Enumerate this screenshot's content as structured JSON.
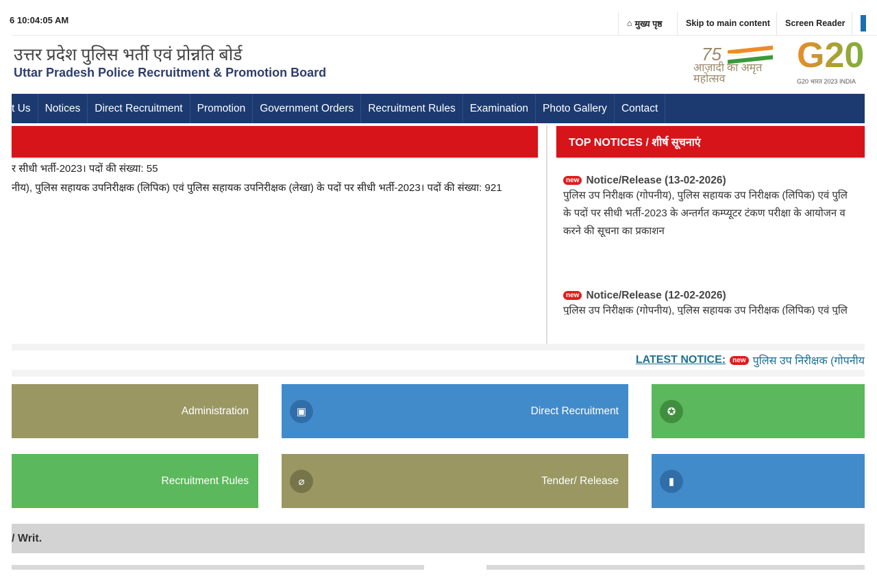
{
  "topbar": {
    "time": "6 10:04:05 AM",
    "home": "मुख्य पृष्ठ",
    "skip": "Skip to main content",
    "reader": "Screen Reader"
  },
  "header": {
    "title_hi": "उत्तर प्रदेश पुलिस भर्ती एवं प्रोन्नति बोर्ड",
    "title_en": "Uttar Pradesh Police Recruitment & Promotion Board",
    "logo1_text": "आज़ादी का अमृत महोत्सव",
    "logo2_text": "G20 भारत 2023 INDIA"
  },
  "nav": [
    "t Us",
    "Notices",
    "Direct Recruitment",
    "Promotion",
    "Government Orders",
    "Recruitment Rules",
    "Examination",
    "Photo Gallery",
    "Contact"
  ],
  "left": {
    "lines": [
      "र सीधी भर्ती-2023। पदों की संख्या: 55",
      "नीय), पुलिस सहायक उपनिरीक्षक (लिपिक) एवं पुलिस सहायक उपनिरीक्षक (लेखा) के पदों पर सीधी भर्ती-2023। पदों की संख्या: 921"
    ]
  },
  "top_notices": {
    "heading": "TOP NOTICES / शीर्ष सूचनाएं",
    "badge": "new",
    "items": [
      {
        "title": "Notice/Release (13-02-2026)",
        "body": [
          "पुलिस उप निरीक्षक (गोपनीय), पुलिस सहायक उप निरीक्षक (लिपिक) एवं पुलि",
          "के पदों पर सीधी भर्ती-2023 के अन्तर्गत कम्प्यूटर टंकण परीक्षा के आयोजन व",
          "करने की सूचना का प्रकाशन"
        ]
      },
      {
        "title": "Notice/Release (12-02-2026)",
        "body": [
          "पुलिस उप निरीक्षक (गोपनीय), पुलिस सहायक उप निरीक्षक (लिपिक) एवं पुलि"
        ]
      }
    ]
  },
  "latest": {
    "label": "LATEST NOTICE:",
    "badge": "new",
    "text": "पुलिस उप निरीक्षक (गोपनीय"
  },
  "tiles": [
    {
      "label": "Administration",
      "icon": ""
    },
    {
      "label": "Direct Recruitment",
      "icon": "address-book-icon"
    },
    {
      "label": "",
      "icon": "medal-icon"
    },
    {
      "label": "Recruitment Rules",
      "icon": ""
    },
    {
      "label": "Tender/ Release",
      "icon": "paperclip-icon"
    },
    {
      "label": "",
      "icon": "bookmark-icon"
    }
  ],
  "section": {
    "label": "/ Writ."
  },
  "colors": {
    "nav": "#1c3a70",
    "red": "#d7141a",
    "olive": "#9a9763",
    "blue": "#428bca",
    "green": "#5cb85c"
  }
}
